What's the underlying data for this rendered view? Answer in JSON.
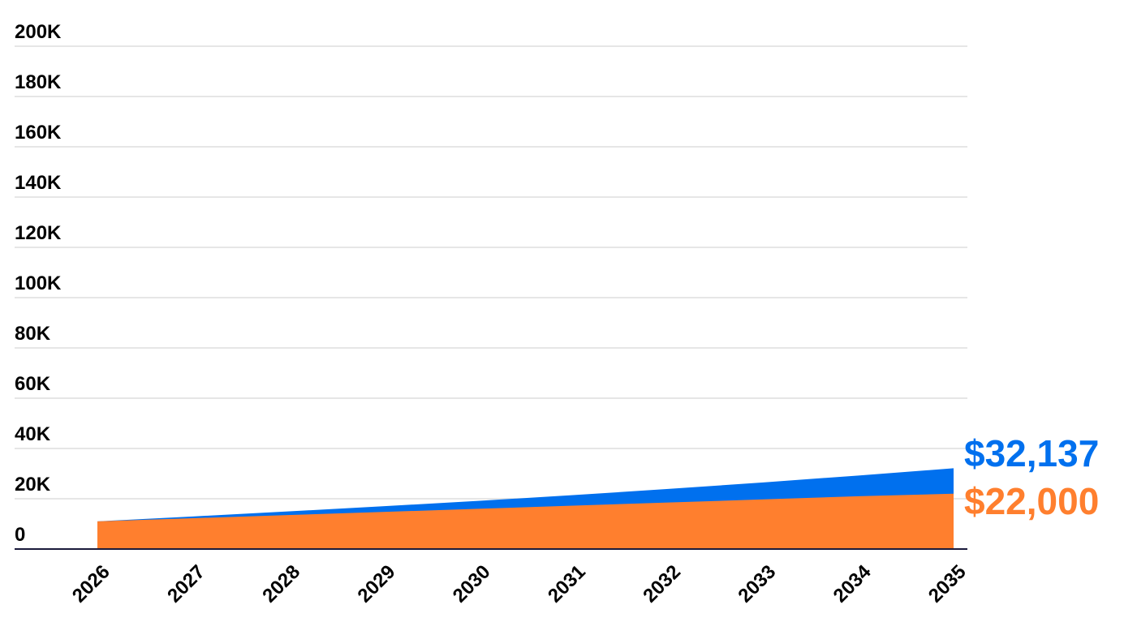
{
  "chart_data": {
    "type": "area",
    "x": [
      "2026",
      "2027",
      "2028",
      "2029",
      "2030",
      "2031",
      "2032",
      "2033",
      "2034",
      "2035"
    ],
    "yticks": [
      "0",
      "20K",
      "40K",
      "60K",
      "80K",
      "100K",
      "120K",
      "140K",
      "160K",
      "180K",
      "200K"
    ],
    "ylim": [
      0,
      200000
    ],
    "grid": true,
    "series": [
      {
        "color": "#0070ee",
        "values": [
          11000,
          12950,
          14950,
          17000,
          19150,
          21450,
          23900,
          26500,
          29250,
          32137
        ],
        "end_label": "$32,137"
      },
      {
        "color": "#ff7f2e",
        "values": [
          11000,
          12250,
          13500,
          14750,
          16000,
          17250,
          18500,
          19750,
          21000,
          22000
        ],
        "end_label": "$22,000"
      }
    ]
  }
}
